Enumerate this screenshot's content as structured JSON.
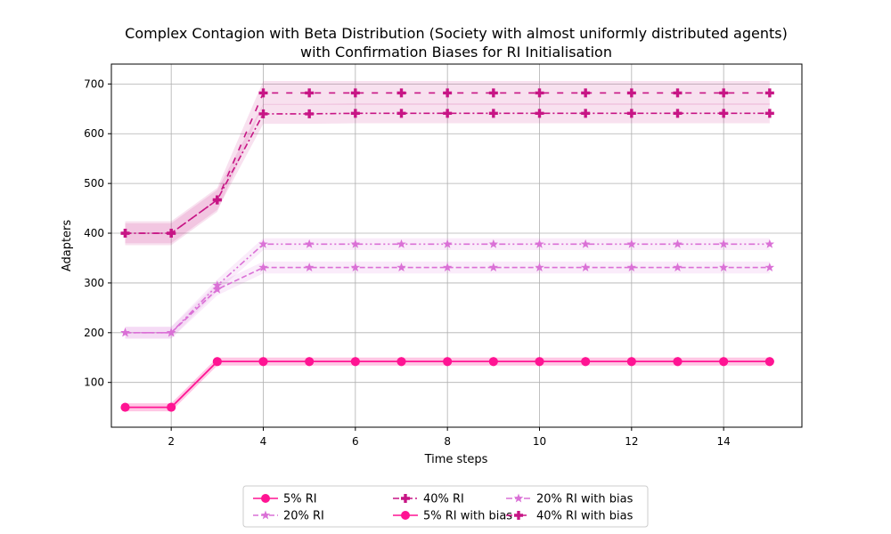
{
  "chart_data": {
    "type": "line",
    "title_line1": "Complex Contagion with Beta Distribution (Society with almost uniformly distributed agents)",
    "title_line2": "with Confirmation Biases for RI Initialisation",
    "xlabel": "Time steps",
    "ylabel": "Adapters",
    "xlim": [
      0.7,
      15.7
    ],
    "ylim": [
      10,
      740
    ],
    "xticks": [
      2,
      4,
      6,
      8,
      10,
      12,
      14
    ],
    "yticks": [
      100,
      200,
      300,
      400,
      500,
      600,
      700
    ],
    "grid": true,
    "legend_position": "bottom-center",
    "x": [
      1,
      2,
      3,
      4,
      5,
      6,
      7,
      8,
      9,
      10,
      11,
      12,
      13,
      14,
      15
    ],
    "series": [
      {
        "name": "5% RI",
        "color": "#ff1493",
        "marker": "circle",
        "dash": "solid",
        "values": [
          50,
          50,
          142,
          142,
          142,
          142,
          142,
          142,
          142,
          142,
          142,
          142,
          142,
          142,
          142
        ],
        "band": 8
      },
      {
        "name": "20% RI",
        "color": "#da70d6",
        "marker": "star",
        "dash": "dashed",
        "values": [
          200,
          200,
          287,
          331,
          331,
          331,
          331,
          331,
          331,
          331,
          331,
          331,
          331,
          331,
          331
        ],
        "band": 12
      },
      {
        "name": "40% RI",
        "color": "#c71585",
        "marker": "plus",
        "dash": "dashdot",
        "values": [
          400,
          400,
          467,
          640,
          640,
          641,
          641,
          641,
          641,
          641,
          641,
          641,
          641,
          641,
          641
        ],
        "band": 20
      },
      {
        "name": "5% RI with bias",
        "color": "#ff1493",
        "marker": "circle",
        "dash": "solid",
        "values": [
          50,
          50,
          142,
          142,
          142,
          142,
          142,
          142,
          142,
          142,
          142,
          142,
          142,
          142,
          142
        ],
        "band": 8
      },
      {
        "name": "20% RI with bias",
        "color": "#da70d6",
        "marker": "star",
        "dash": "dashdotdot",
        "values": [
          200,
          200,
          295,
          378,
          378,
          378,
          378,
          378,
          378,
          378,
          378,
          378,
          378,
          378,
          378
        ],
        "band": 12
      },
      {
        "name": "40% RI with bias",
        "color": "#c71585",
        "marker": "plus",
        "dash": "loosedash",
        "values": [
          400,
          400,
          467,
          682,
          682,
          682,
          682,
          682,
          682,
          682,
          682,
          682,
          682,
          682,
          682
        ],
        "band": 24
      }
    ]
  }
}
